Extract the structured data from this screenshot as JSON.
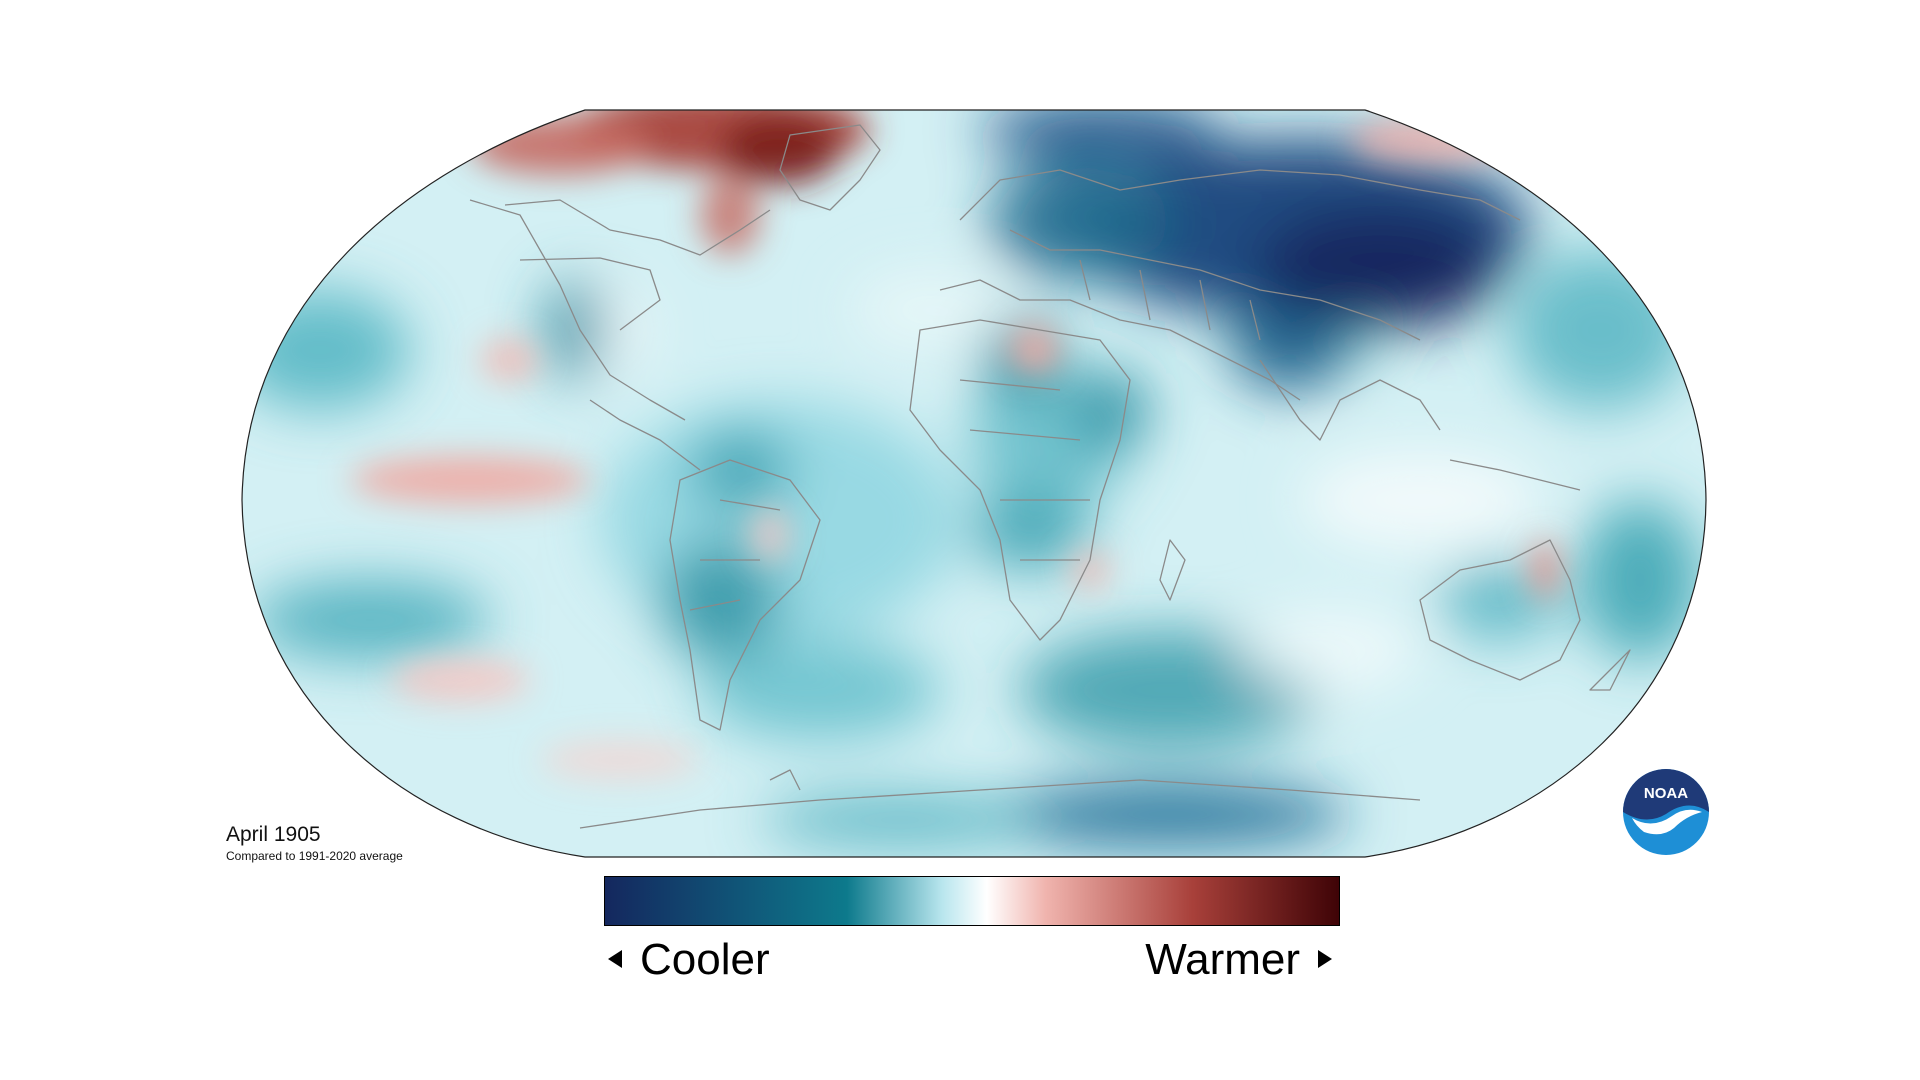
{
  "caption": {
    "title": "April 1905",
    "subtitle": "Compared to 1991-2020 average"
  },
  "legend": {
    "left_label": "Cooler",
    "right_label": "Warmer",
    "colors": [
      "#14275e",
      "#0d7a8c",
      "#b9e6ee",
      "#ffffff",
      "#f0b4ae",
      "#a8403a",
      "#3e0306"
    ]
  },
  "logo": {
    "text": "NOAA",
    "colors": {
      "top": "#1f3a78",
      "bottom": "#1e8fd6",
      "bird": "#ffffff"
    }
  },
  "map": {
    "projection": "robinson",
    "ocean_base_color": "#cfeff3",
    "border_color": "#8a8a8a"
  }
}
